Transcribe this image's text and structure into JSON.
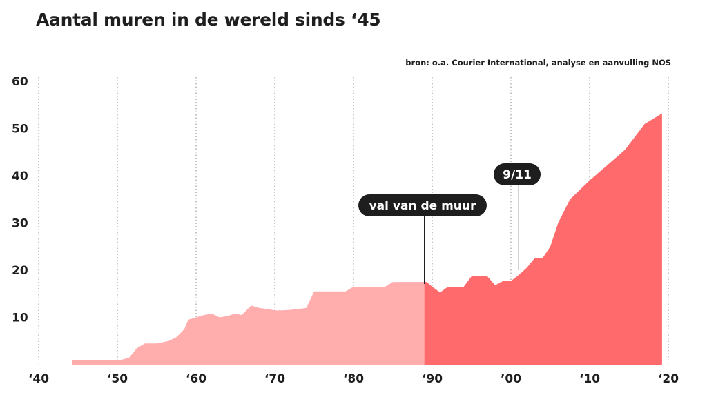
{
  "header": {
    "title": "Aantal muren in de wereld sinds ‘45",
    "source": "bron: o.a. Courier International, analyse en aanvulling NOS"
  },
  "chart_data": {
    "type": "area",
    "title": "Aantal muren in de wereld sinds ‘45",
    "xlabel": "",
    "ylabel": "",
    "xlim": [
      1940,
      2020
    ],
    "ylim": [
      0,
      60
    ],
    "x_ticks": [
      1940,
      1950,
      1960,
      1970,
      1980,
      1990,
      2000,
      2010,
      2020
    ],
    "x_tick_labels": [
      "‘40",
      "‘50",
      "‘60",
      "‘70",
      "‘80",
      "‘90",
      "’00",
      "‘10",
      "‘20"
    ],
    "y_ticks": [
      10,
      20,
      30,
      40,
      50,
      60
    ],
    "y_tick_labels": [
      "10",
      "20",
      "30",
      "40",
      "50",
      "60"
    ],
    "grid": "vertical-dotted",
    "split_year": 1989,
    "colors": {
      "before": "#ffadad",
      "after": "#ff6b6d",
      "label_bg": "#1e1e1e",
      "text": "#1e1e1e"
    },
    "x": [
      1944.3,
      1950.5,
      1951.5,
      1952.5,
      1953.5,
      1955,
      1956.5,
      1957.5,
      1958.5,
      1959,
      1960,
      1961,
      1962,
      1963,
      1964,
      1965,
      1965.8,
      1967,
      1968,
      1969,
      1970,
      1971,
      1972,
      1973,
      1974,
      1975,
      1979,
      1980,
      1984,
      1985,
      1989,
      1989.3,
      1990,
      1991,
      1992,
      1994,
      1995,
      1997,
      1998,
      1999,
      2000,
      2001,
      2002,
      2003,
      2004,
      2005,
      2006,
      2007.5,
      2010,
      2014.5,
      2017,
      2019.2
    ],
    "values": [
      1,
      1,
      1.5,
      3.5,
      4.5,
      4.5,
      5,
      5.8,
      7.5,
      9.5,
      10,
      10.5,
      10.8,
      10,
      10.3,
      10.8,
      10.5,
      12.5,
      12,
      11.8,
      11.5,
      11.5,
      11.6,
      11.8,
      12,
      15.5,
      15.5,
      16.5,
      16.5,
      17.5,
      17.5,
      17.5,
      16.5,
      15.3,
      16.5,
      16.5,
      18.7,
      18.7,
      16.8,
      17.7,
      17.7,
      19,
      20.5,
      22.5,
      22.5,
      25,
      30,
      35,
      39,
      45.5,
      51,
      53.2
    ],
    "annotations": [
      {
        "label": "val van de muur",
        "x": 1989
      },
      {
        "label": "9/11",
        "x": 2001
      }
    ]
  }
}
